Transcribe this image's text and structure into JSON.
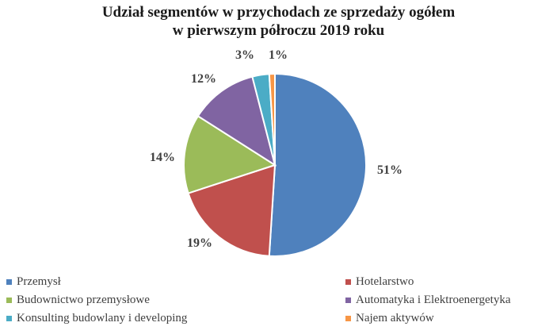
{
  "chart_data": {
    "type": "pie",
    "title_line1": "Udział segmentów w przychodach ze sprzedaży ogółem",
    "title_line2": "w pierwszym półroczu 2019 roku",
    "slices": [
      {
        "label": "Przemysł",
        "value": 51,
        "value_label": "51%",
        "color": "#4f81bd"
      },
      {
        "label": "Hotelarstwo",
        "value": 19,
        "value_label": "19%",
        "color": "#c0504d"
      },
      {
        "label": "Budownictwo przemysłowe",
        "value": 14,
        "value_label": "14%",
        "color": "#9bbb59"
      },
      {
        "label": "Automatyka i Elektroenergetyka",
        "value": 12,
        "value_label": "12%",
        "color": "#8064a2"
      },
      {
        "label": "Konsulting budowlany i developing",
        "value": 3,
        "value_label": "3%",
        "color": "#4bacc6"
      },
      {
        "label": "Najem aktywów",
        "value": 1,
        "value_label": "1%",
        "color": "#f79646"
      }
    ],
    "legend_position": "bottom"
  }
}
